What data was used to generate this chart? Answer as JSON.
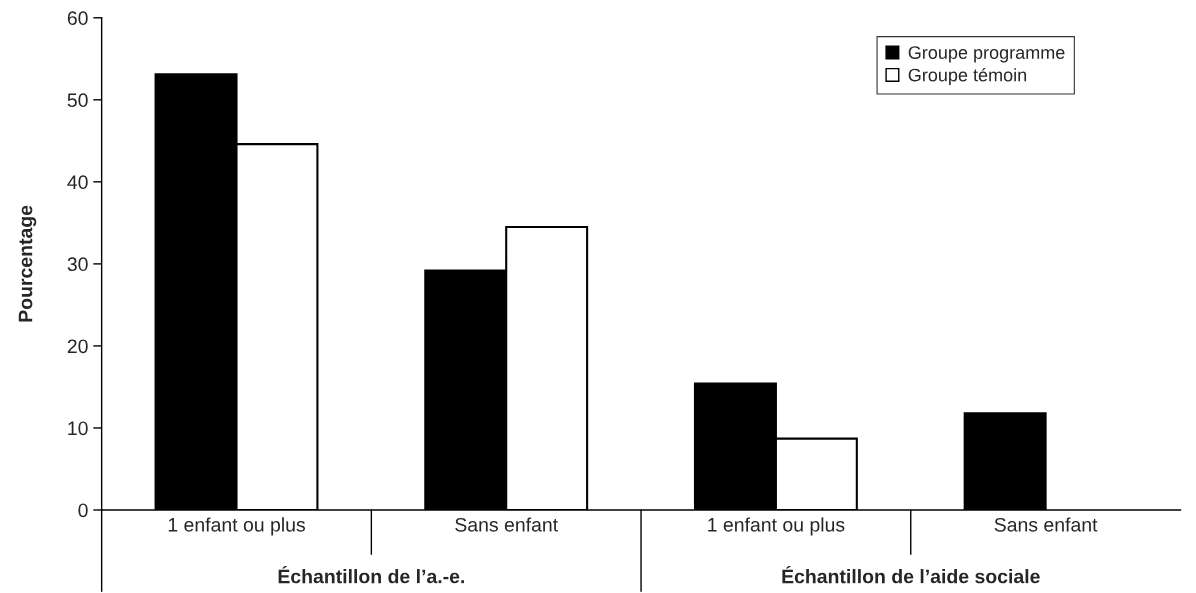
{
  "chart_data": {
    "type": "bar",
    "ylabel": "Pourcentage",
    "categories": [
      "1 enfant ou plus",
      "Sans enfant",
      "1 enfant ou plus",
      "Sans enfant"
    ],
    "series": [
      {
        "name": "Groupe programme",
        "color": "#000000",
        "values": [
          53.1,
          29.2,
          15.4,
          11.8
        ]
      },
      {
        "name": "Groupe témoin",
        "color": "#ffffff",
        "values": [
          44.6,
          34.5,
          8.7,
          null
        ]
      }
    ],
    "annotations": [
      "Échantillon de l’a.-e.",
      "Échantillon de l’aide sociale"
    ],
    "ylim": [
      0,
      60
    ],
    "yticks": [
      0,
      10,
      20,
      30,
      40,
      50,
      60
    ],
    "grid": false,
    "legend": "top right"
  }
}
